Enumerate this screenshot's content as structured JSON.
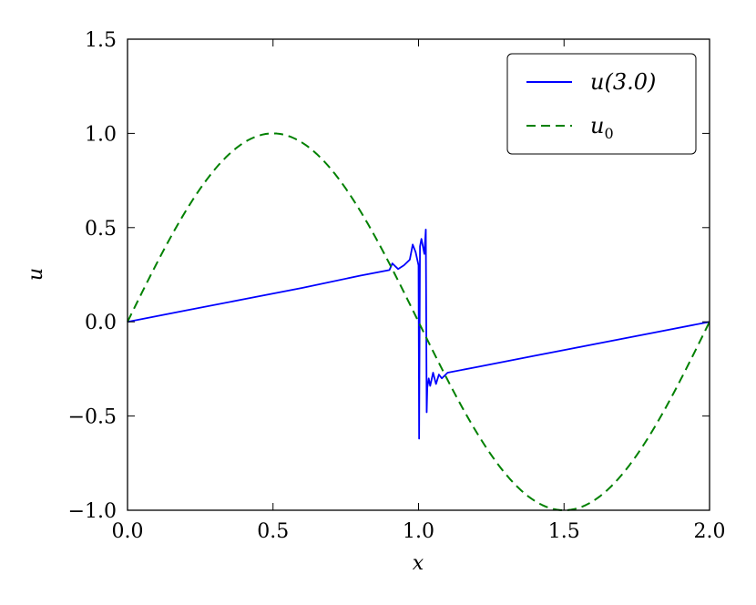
{
  "chart_data": {
    "type": "line",
    "xlabel": "x",
    "ylabel": "u",
    "xlim": [
      0.0,
      2.0
    ],
    "ylim": [
      -1.0,
      1.5
    ],
    "x_ticks": [
      "0.0",
      "0.5",
      "1.0",
      "1.5",
      "2.0"
    ],
    "y_ticks": [
      "1.5",
      "1.0",
      "0.5",
      "0.0",
      "−0.5",
      "−1.0"
    ],
    "grid": false,
    "legend_position": "top-right",
    "series": [
      {
        "name": "u(3.0)",
        "style": "solid",
        "color": "#0000ff",
        "points": [
          [
            0.0,
            0.0
          ],
          [
            0.2,
            0.06
          ],
          [
            0.4,
            0.12
          ],
          [
            0.6,
            0.18
          ],
          [
            0.8,
            0.245
          ],
          [
            0.9,
            0.275
          ],
          [
            0.91,
            0.31
          ],
          [
            0.93,
            0.28
          ],
          [
            0.95,
            0.3
          ],
          [
            0.97,
            0.33
          ],
          [
            0.98,
            0.41
          ],
          [
            0.99,
            0.37
          ],
          [
            1.0,
            0.3
          ],
          [
            1.002,
            -0.62
          ],
          [
            1.005,
            0.4
          ],
          [
            1.01,
            0.44
          ],
          [
            1.02,
            0.36
          ],
          [
            1.025,
            0.49
          ],
          [
            1.028,
            -0.48
          ],
          [
            1.03,
            -0.35
          ],
          [
            1.035,
            -0.3
          ],
          [
            1.04,
            -0.34
          ],
          [
            1.05,
            -0.27
          ],
          [
            1.06,
            -0.33
          ],
          [
            1.07,
            -0.28
          ],
          [
            1.08,
            -0.3
          ],
          [
            1.1,
            -0.27
          ],
          [
            1.2,
            -0.24
          ],
          [
            1.4,
            -0.18
          ],
          [
            1.6,
            -0.12
          ],
          [
            1.8,
            -0.06
          ],
          [
            2.0,
            0.0
          ]
        ]
      },
      {
        "name": "u0",
        "style": "dashed",
        "color": "#008000",
        "function": "sin(pi*x)",
        "samples": 161
      }
    ]
  },
  "legend": {
    "entries": [
      {
        "label_main": "u(3.0)",
        "label_sub": ""
      },
      {
        "label_main": "u",
        "label_sub": "0"
      }
    ]
  }
}
